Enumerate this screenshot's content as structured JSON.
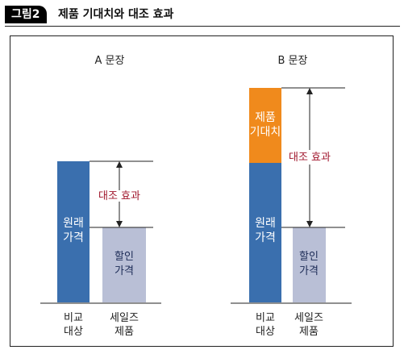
{
  "header": {
    "badge": "그림2",
    "title": "제품 기대치와 대조 효과"
  },
  "panel_a": {
    "title": "A 문장",
    "tall_bar_label": [
      "원래",
      "가격"
    ],
    "short_bar_label": [
      "할인",
      "가격"
    ],
    "effect_label": "대조 효과",
    "x_labels": [
      [
        "비교",
        "대상"
      ],
      [
        "세일즈",
        "제품"
      ]
    ]
  },
  "panel_b": {
    "title": "B 문장",
    "top_bar_label": [
      "제품",
      "기대치"
    ],
    "tall_bar_label": [
      "원래",
      "가격"
    ],
    "short_bar_label": [
      "할인",
      "가격"
    ],
    "effect_label": "대조 효과",
    "x_labels": [
      [
        "비교",
        "대상"
      ],
      [
        "세일즈",
        "제품"
      ]
    ]
  },
  "colors": {
    "blue": "#3a6fae",
    "gray": "#b9bfd6",
    "orange": "#f08a1c",
    "red": "#a0162c"
  }
}
